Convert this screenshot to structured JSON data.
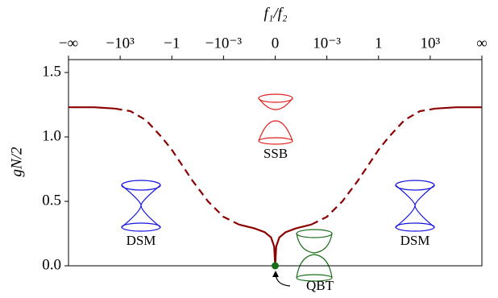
{
  "chart_data": {
    "type": "line",
    "xlabel": "f₁/f₂",
    "ylabel": "gN/2",
    "xlim": [
      -4,
      4
    ],
    "ylim": [
      0,
      1.6
    ],
    "xticks": [
      {
        "value": -4,
        "label": "−∞"
      },
      {
        "value": -3,
        "label": "−10³"
      },
      {
        "value": -2,
        "label": "−1"
      },
      {
        "value": -1,
        "label": "−10⁻³"
      },
      0,
      {
        "value": 1,
        "label": "10⁻³"
      },
      {
        "value": 2,
        "label": "1"
      },
      {
        "value": 3,
        "label": "10³"
      },
      {
        "value": 4,
        "label": "∞"
      }
    ],
    "yticks": [
      {
        "value": 0,
        "label": "0.0"
      },
      0.5,
      {
        "value": 1,
        "label": "1.0"
      },
      1.5
    ],
    "series": [
      {
        "color": "#8b0000",
        "style": "solid",
        "x": [
          -4,
          -3.5,
          -3.1,
          null,
          -0.7,
          -0.4,
          -0.2,
          -0.08,
          -0.02,
          0,
          0.02,
          0.08,
          0.2,
          0.4,
          0.7,
          null,
          3.1,
          3.5,
          4
        ],
        "values": [
          1.23,
          1.23,
          1.22,
          null,
          0.32,
          0.29,
          0.26,
          0.22,
          0.15,
          0,
          0.15,
          0.22,
          0.26,
          0.29,
          0.32,
          null,
          1.22,
          1.23,
          1.23
        ]
      },
      {
        "color": "#8b0000",
        "style": "dashed",
        "x": [
          -3.1,
          -2.8,
          -2.5,
          -2.2,
          -2.0,
          -1.8,
          -1.6,
          -1.3,
          -1.0,
          -0.7,
          null,
          0.7,
          1.0,
          1.3,
          1.6,
          1.8,
          2.0,
          2.2,
          2.5,
          2.8,
          3.1
        ],
        "values": [
          1.22,
          1.2,
          1.13,
          1.0,
          0.9,
          0.78,
          0.66,
          0.5,
          0.38,
          0.32,
          null,
          0.32,
          0.38,
          0.5,
          0.66,
          0.78,
          0.9,
          1.0,
          1.13,
          1.2,
          1.22
        ]
      }
    ],
    "point": {
      "x": 0,
      "value": 0,
      "color": "#1a6e1a"
    },
    "annotations": [
      {
        "text": "SSB",
        "color": "#e0201b"
      },
      {
        "text": "DSM",
        "color": "#1515e0"
      },
      {
        "text": "DSM",
        "color": "#1515e0"
      },
      {
        "text": "QBT",
        "color": "#1a6e1a"
      }
    ]
  }
}
